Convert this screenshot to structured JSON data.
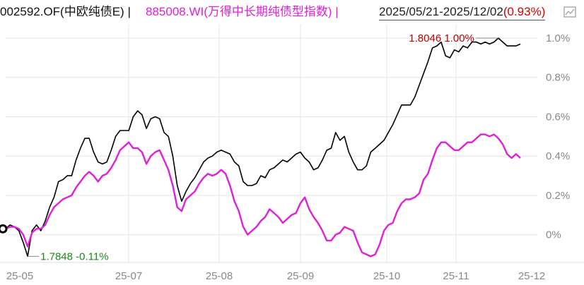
{
  "header": {
    "fund_label": "002592.OF(中欧纯债E) |",
    "index_label": "885008.WI(万得中长期纯债型指数) |",
    "range_label": "2025/05/21-2025/12/02",
    "range_change": "(0.93%)"
  },
  "colors": {
    "fund": "#000000",
    "index": "#e020d8",
    "max_label": "#c00000",
    "min_label": "#1a8a1a",
    "grid": "#e6e6e6",
    "tick": "#888888"
  },
  "chart_data": {
    "type": "line",
    "xlabel": "",
    "ylabel": "",
    "x_ticks": [
      "25-05",
      "25-07",
      "25-08",
      "25-09",
      "25-10",
      "25-11",
      "25-12"
    ],
    "y_ticks": [
      "1.0%",
      "0.8%",
      "0.6%",
      "0.4%",
      "0.2%",
      "0%"
    ],
    "ylim": [
      -0.12,
      1.05
    ],
    "grid": true,
    "annotations": {
      "max": {
        "label": "1.8046 1.00%",
        "value": 1.0
      },
      "min": {
        "label": "1.7848 -0.11%",
        "value": -0.11
      }
    },
    "series": [
      {
        "name": "002592.OF(中欧纯债E)",
        "values": [
          0.03,
          0.05,
          0.04,
          0.02,
          -0.04,
          -0.11,
          0.02,
          0.05,
          0.02,
          0.07,
          0.14,
          0.19,
          0.27,
          0.28,
          0.3,
          0.3,
          0.38,
          0.44,
          0.49,
          0.49,
          0.42,
          0.37,
          0.36,
          0.37,
          0.43,
          0.5,
          0.53,
          0.53,
          0.53,
          0.6,
          0.63,
          0.61,
          0.54,
          0.59,
          0.6,
          0.59,
          0.52,
          0.5,
          0.4,
          0.25,
          0.17,
          0.22,
          0.26,
          0.29,
          0.33,
          0.37,
          0.39,
          0.4,
          0.42,
          0.43,
          0.42,
          0.41,
          0.37,
          0.35,
          0.27,
          0.25,
          0.25,
          0.26,
          0.3,
          0.29,
          0.33,
          0.34,
          0.36,
          0.38,
          0.37,
          0.39,
          0.41,
          0.42,
          0.39,
          0.37,
          0.33,
          0.34,
          0.38,
          0.43,
          0.44,
          0.52,
          0.48,
          0.5,
          0.42,
          0.37,
          0.33,
          0.33,
          0.35,
          0.42,
          0.44,
          0.46,
          0.48,
          0.52,
          0.56,
          0.61,
          0.66,
          0.66,
          0.66,
          0.7,
          0.76,
          0.82,
          0.88,
          0.95,
          0.96,
          0.98,
          0.91,
          0.9,
          0.94,
          0.93,
          0.96,
          0.95,
          0.98,
          0.98,
          0.97,
          0.98,
          0.97,
          0.98,
          1.0,
          0.98,
          0.96,
          0.96,
          0.96,
          0.97
        ]
      },
      {
        "name": "885008.WI(万得中长期纯债型指数)",
        "values": [
          0.03,
          0.04,
          0.04,
          0.03,
          0.0,
          -0.06,
          0.01,
          0.03,
          0.03,
          0.05,
          0.1,
          0.14,
          0.16,
          0.18,
          0.19,
          0.2,
          0.24,
          0.27,
          0.3,
          0.32,
          0.3,
          0.27,
          0.3,
          0.31,
          0.34,
          0.38,
          0.43,
          0.45,
          0.47,
          0.44,
          0.44,
          0.42,
          0.36,
          0.4,
          0.42,
          0.43,
          0.38,
          0.33,
          0.25,
          0.14,
          0.12,
          0.18,
          0.2,
          0.22,
          0.26,
          0.29,
          0.31,
          0.3,
          0.31,
          0.33,
          0.31,
          0.25,
          0.17,
          0.12,
          0.04,
          0.0,
          0.02,
          0.04,
          0.07,
          0.09,
          0.13,
          0.11,
          0.09,
          0.06,
          0.08,
          0.1,
          0.11,
          0.16,
          0.19,
          0.13,
          0.09,
          0.06,
          0.02,
          -0.03,
          -0.03,
          0.0,
          0.01,
          0.04,
          0.03,
          0.02,
          -0.04,
          -0.09,
          -0.1,
          -0.11,
          -0.1,
          -0.05,
          0.02,
          0.05,
          0.06,
          0.12,
          0.16,
          0.18,
          0.18,
          0.19,
          0.21,
          0.28,
          0.31,
          0.38,
          0.44,
          0.47,
          0.47,
          0.45,
          0.43,
          0.43,
          0.45,
          0.47,
          0.47,
          0.49,
          0.51,
          0.51,
          0.5,
          0.51,
          0.49,
          0.46,
          0.41,
          0.39,
          0.41,
          0.39
        ]
      }
    ]
  }
}
